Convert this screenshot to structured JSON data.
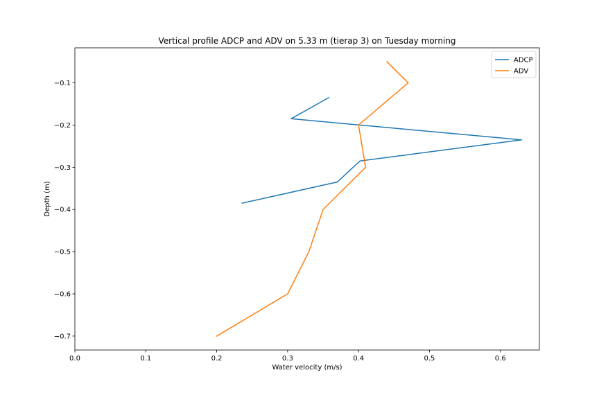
{
  "chart_data": {
    "type": "line",
    "title": "Vertical profile ADCP and ADV on 5.33 m (tierap 3) on Tuesday morning",
    "xlabel": "Water velocity (m/s)",
    "ylabel": "Depth (m)",
    "xlim": [
      0.0,
      0.655
    ],
    "ylim": [
      -0.733,
      -0.017
    ],
    "xticks": [
      0.0,
      0.1,
      0.2,
      0.3,
      0.4,
      0.5,
      0.6
    ],
    "xtick_labels": [
      "0.0",
      "0.1",
      "0.2",
      "0.3",
      "0.4",
      "0.5",
      "0.6"
    ],
    "yticks": [
      -0.1,
      -0.2,
      -0.3,
      -0.4,
      -0.5,
      -0.6,
      -0.7
    ],
    "ytick_labels": [
      "−0.1",
      "−0.2",
      "−0.3",
      "−0.4",
      "−0.5",
      "−0.6",
      "−0.7"
    ],
    "grid": false,
    "legend_position": "top-right",
    "series": [
      {
        "name": "ADCP",
        "color": "#1f77b4",
        "x": [
          0.358,
          0.305,
          0.63,
          0.402,
          0.37,
          0.236
        ],
        "y": [
          -0.135,
          -0.185,
          -0.235,
          -0.285,
          -0.335,
          -0.385
        ]
      },
      {
        "name": "ADV",
        "color": "#ff7f0e",
        "x": [
          0.44,
          0.47,
          0.4,
          0.41,
          0.35,
          0.33,
          0.3,
          0.2
        ],
        "y": [
          -0.05,
          -0.1,
          -0.2,
          -0.3,
          -0.4,
          -0.5,
          -0.6,
          -0.7
        ]
      }
    ]
  }
}
